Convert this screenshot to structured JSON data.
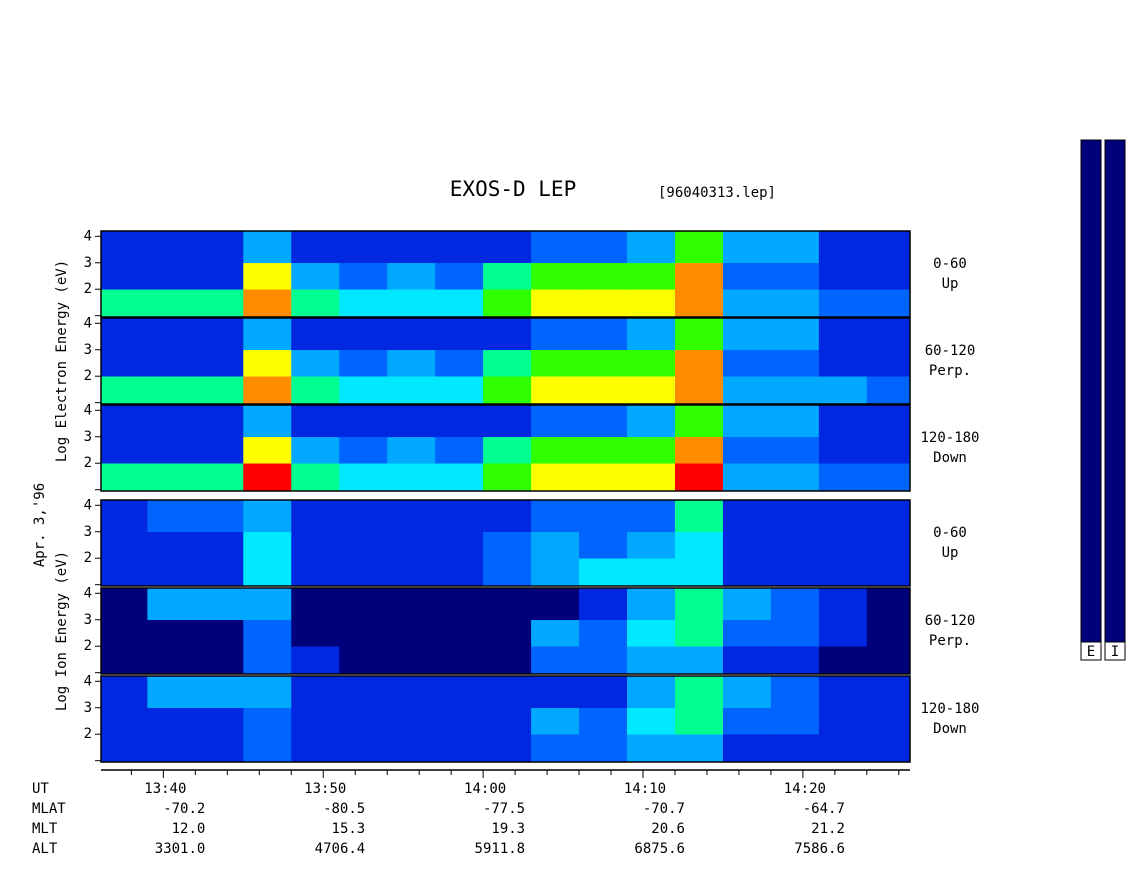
{
  "chart_data": {
    "type": "spectrogram",
    "title": "EXOS-D LEP",
    "subtitle": "[96040313.lep]",
    "date_label": "Apr. 3,'96",
    "xlim": [
      816.1,
      866.7
    ],
    "xticks": [
      {
        "value": 820,
        "label": "13:40"
      },
      {
        "value": 830,
        "label": "13:50"
      },
      {
        "value": 840,
        "label": "14:00"
      },
      {
        "value": 850,
        "label": "14:10"
      },
      {
        "value": 860,
        "label": "14:20"
      }
    ],
    "minor_xticks": [
      818,
      822,
      824,
      826,
      828,
      832,
      834,
      836,
      838,
      842,
      844,
      846,
      848,
      852,
      854,
      856,
      858,
      862,
      864,
      866
    ],
    "xbins": [
      816.1,
      819,
      822,
      825,
      828,
      831,
      834,
      837,
      840,
      843,
      846,
      849,
      852,
      855,
      858,
      861,
      864,
      866.7
    ],
    "ylim": [
      0.95,
      4.2
    ],
    "yticks": [
      2,
      3,
      4
    ],
    "minor_yticks": [
      1
    ],
    "ybins": [
      0.95,
      2,
      3,
      4.2
    ],
    "colormap": [
      "#00007a",
      "#0028e0",
      "#0064ff",
      "#00a8ff",
      "#00e8ff",
      "#00ff90",
      "#30ff00",
      "#ffff00",
      "#ff8c00",
      "#ff0000",
      "#ffc8d0"
    ],
    "colorbar_labels": [
      "E",
      "I"
    ],
    "groups": [
      {
        "ylabel": "Log Electron Energy (eV)",
        "panels": [
          {
            "label": "0-60",
            "sublabel": "Up",
            "values": [
              [
                5,
                5,
                5,
                8,
                5,
                4,
                4,
                4,
                6,
                7,
                7,
                7,
                8,
                3,
                3,
                2,
                2
              ],
              [
                1,
                1,
                1,
                7,
                3,
                2,
                3,
                2,
                5,
                6,
                6,
                6,
                8,
                2,
                2,
                1,
                1
              ],
              [
                1,
                1,
                1,
                3,
                1,
                1,
                1,
                1,
                1,
                2,
                2,
                3,
                6,
                3,
                3,
                1,
                1
              ]
            ]
          },
          {
            "label": "60-120",
            "sublabel": "Perp.",
            "values": [
              [
                5,
                5,
                5,
                8,
                5,
                4,
                4,
                4,
                6,
                7,
                7,
                7,
                8,
                3,
                3,
                3,
                2
              ],
              [
                1,
                1,
                1,
                7,
                3,
                2,
                3,
                2,
                5,
                6,
                6,
                6,
                8,
                2,
                2,
                1,
                1
              ],
              [
                1,
                1,
                1,
                3,
                1,
                1,
                1,
                1,
                1,
                2,
                2,
                3,
                6,
                3,
                3,
                1,
                1
              ]
            ]
          },
          {
            "label": "120-180",
            "sublabel": "Down",
            "values": [
              [
                5,
                5,
                5,
                9,
                5,
                4,
                4,
                4,
                6,
                7,
                7,
                7,
                9,
                3,
                3,
                2,
                2
              ],
              [
                1,
                1,
                1,
                7,
                3,
                2,
                3,
                2,
                5,
                6,
                6,
                6,
                8,
                2,
                2,
                1,
                1
              ],
              [
                1,
                1,
                1,
                3,
                1,
                1,
                1,
                1,
                1,
                2,
                2,
                3,
                6,
                3,
                3,
                1,
                1
              ]
            ]
          }
        ]
      },
      {
        "ylabel": "Log Ion Energy (eV)",
        "panels": [
          {
            "label": "0-60",
            "sublabel": "Up",
            "values": [
              [
                1,
                1,
                1,
                4,
                1,
                1,
                1,
                1,
                2,
                3,
                4,
                4,
                4,
                1,
                1,
                1,
                1
              ],
              [
                1,
                1,
                1,
                4,
                1,
                1,
                1,
                1,
                2,
                3,
                2,
                3,
                4,
                1,
                1,
                1,
                1
              ],
              [
                1,
                2,
                2,
                3,
                1,
                1,
                1,
                1,
                1,
                2,
                2,
                2,
                5,
                1,
                1,
                1,
                1
              ]
            ]
          },
          {
            "label": "60-120",
            "sublabel": "Perp.",
            "values": [
              [
                0,
                0,
                0,
                2,
                1,
                0,
                0,
                0,
                0,
                2,
                2,
                3,
                3,
                1,
                1,
                0,
                0
              ],
              [
                0,
                0,
                0,
                2,
                0,
                0,
                0,
                0,
                0,
                3,
                2,
                4,
                5,
                2,
                2,
                1,
                0
              ],
              [
                0,
                3,
                3,
                3,
                0,
                0,
                0,
                0,
                0,
                0,
                1,
                3,
                5,
                3,
                2,
                1,
                0
              ]
            ]
          },
          {
            "label": "120-180",
            "sublabel": "Down",
            "values": [
              [
                1,
                1,
                1,
                2,
                1,
                1,
                1,
                1,
                1,
                2,
                2,
                3,
                3,
                1,
                1,
                1,
                1
              ],
              [
                1,
                1,
                1,
                2,
                1,
                1,
                1,
                1,
                1,
                3,
                2,
                4,
                5,
                2,
                2,
                1,
                1
              ],
              [
                1,
                3,
                3,
                3,
                1,
                1,
                1,
                1,
                1,
                1,
                1,
                3,
                5,
                3,
                2,
                1,
                1
              ]
            ]
          }
        ]
      }
    ],
    "orbit_table": {
      "time_label": "UT",
      "rows": [
        {
          "label": "MLAT",
          "values": [
            "-70.2",
            "-80.5",
            "-77.5",
            "-70.7",
            "-64.7"
          ]
        },
        {
          "label": "MLT",
          "values": [
            "12.0",
            "15.3",
            "19.3",
            "20.6",
            "21.2"
          ]
        },
        {
          "label": "ALT",
          "values": [
            "3301.0",
            "4706.4",
            "5911.8",
            "6875.6",
            "7586.6"
          ]
        }
      ]
    }
  }
}
